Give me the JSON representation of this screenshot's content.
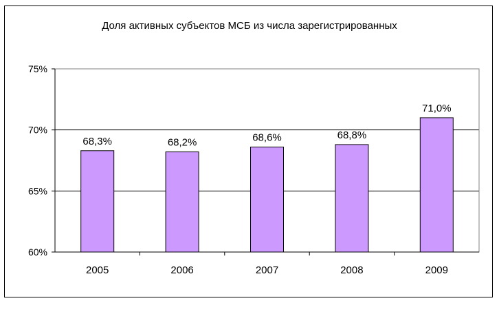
{
  "chart_data": {
    "type": "bar",
    "title": "Доля активных субъектов МСБ из числа зарегистрированных",
    "categories": [
      "2005",
      "2006",
      "2007",
      "2008",
      "2009"
    ],
    "values": [
      68.3,
      68.2,
      68.6,
      68.8,
      71.0
    ],
    "data_labels": [
      "68,3%",
      "68,2%",
      "68,6%",
      "68,8%",
      "71,0%"
    ],
    "ylim": [
      60,
      75
    ],
    "yticks": [
      60,
      65,
      70,
      75
    ],
    "ytick_labels": [
      "60%",
      "65%",
      "70%",
      "75%"
    ],
    "xlabel": "",
    "ylabel": "",
    "grid": true,
    "legend": "none",
    "colors": {
      "bar_fill": "#cc99ff",
      "bar_stroke": "#000000",
      "gridline": "#000000"
    }
  }
}
